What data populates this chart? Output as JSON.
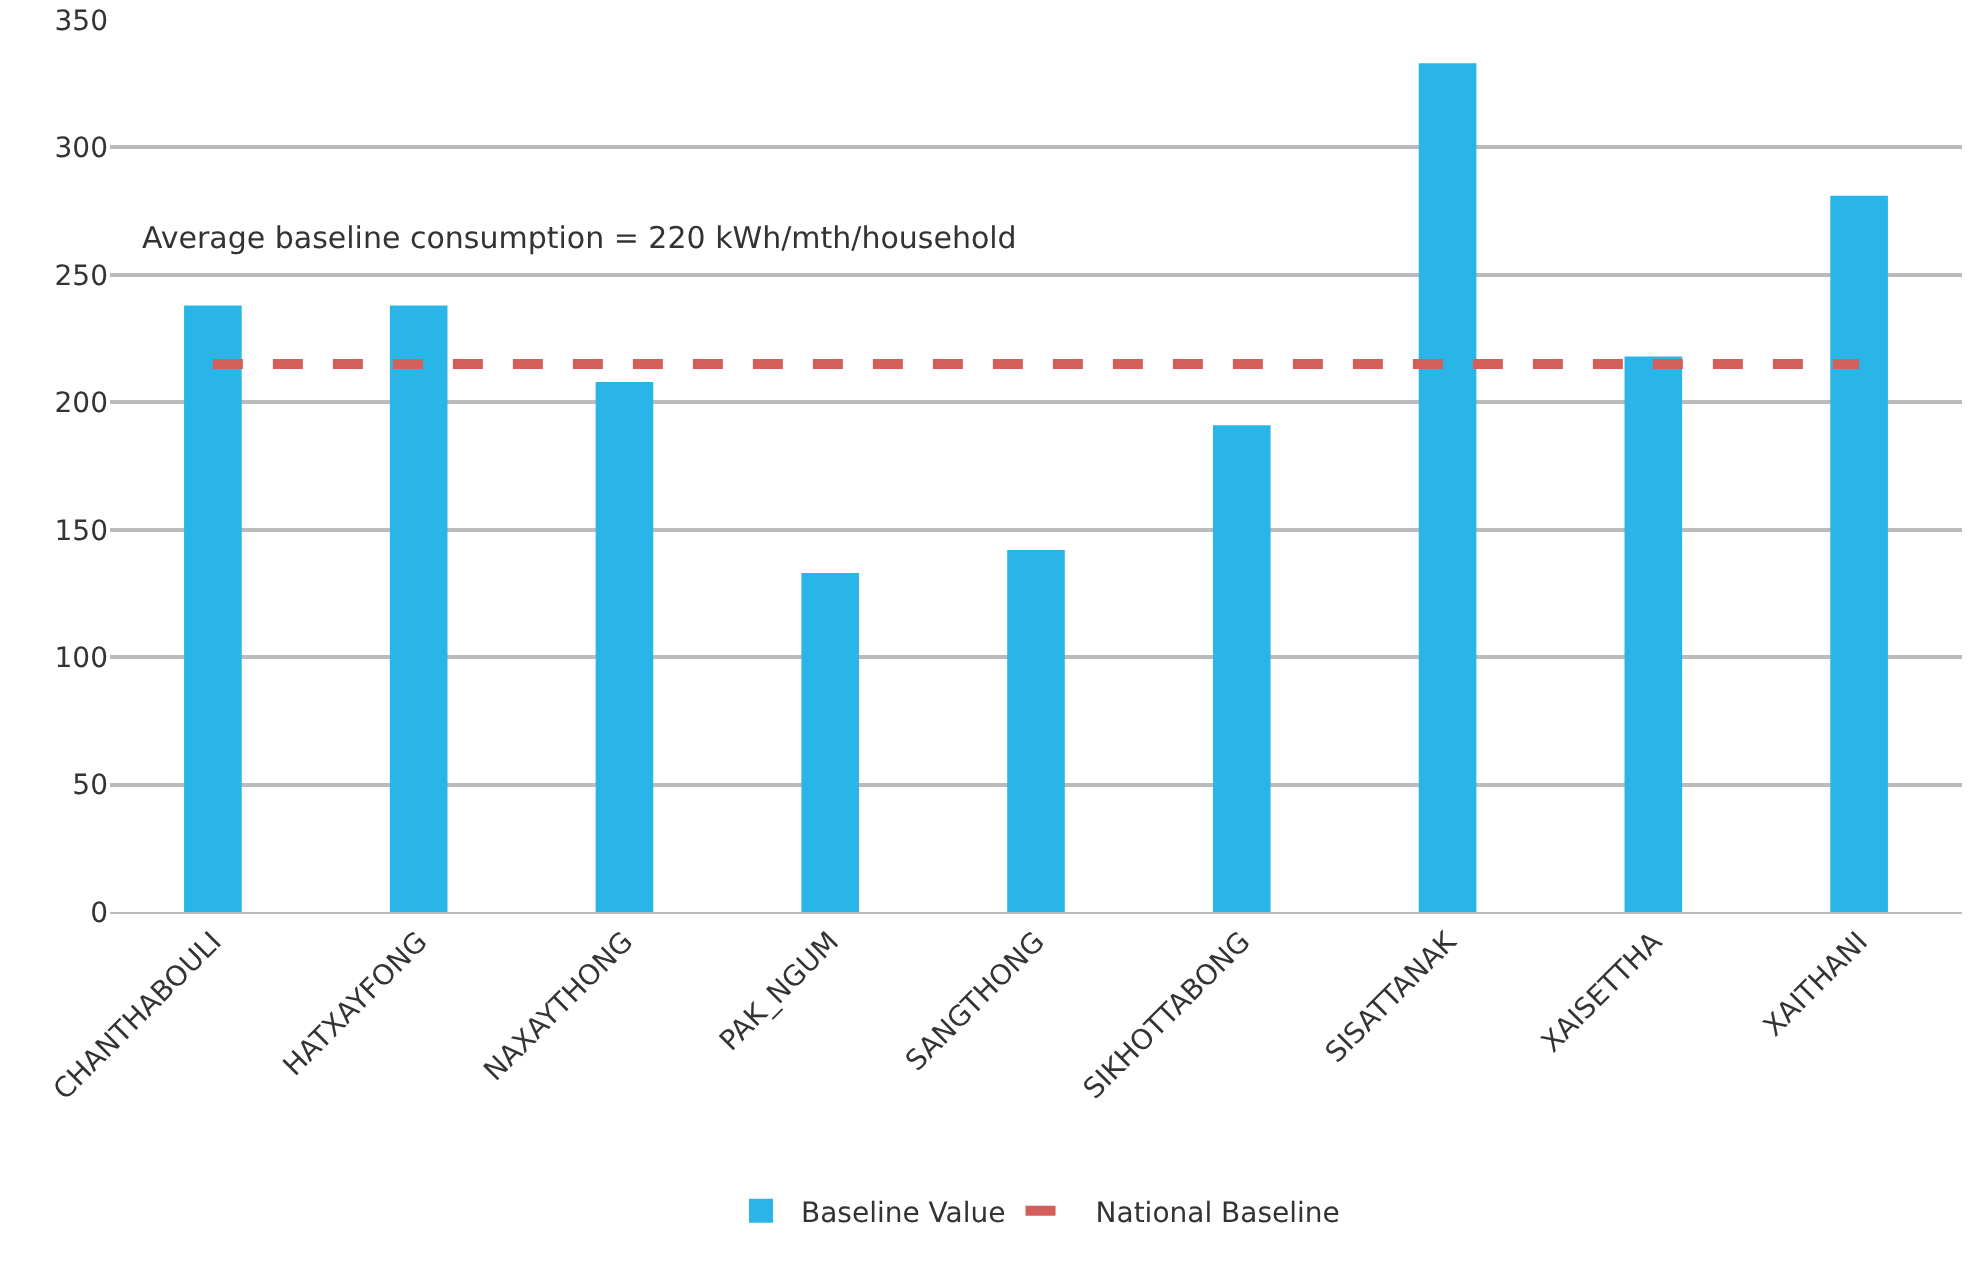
{
  "chart_data": {
    "type": "bar",
    "categories": [
      "CHANTHABOULI",
      "HATXAYFONG",
      "NAXAYTHONG",
      "PAK_NGUM",
      "SANGTHONG",
      "SIKHOTTABONG",
      "SISATTANAK",
      "XAISETTHA",
      "XAITHANI"
    ],
    "series": [
      {
        "name": "Baseline Value",
        "color": "#29b5e8",
        "values": [
          238,
          238,
          208,
          133,
          142,
          191,
          333,
          218,
          281
        ]
      },
      {
        "name": "National Baseline",
        "type": "line",
        "line_style": "dashed",
        "color": "#d45f5a",
        "values": [
          215,
          215,
          215,
          215,
          215,
          215,
          215,
          215,
          215
        ]
      }
    ],
    "annotations": [
      "Average baseline consumption = 220 kWh/mth/household"
    ],
    "ylim": [
      0,
      350
    ],
    "yticks": [
      0,
      50,
      100,
      150,
      200,
      250,
      300,
      350
    ],
    "grid": "y",
    "legend": "bottom",
    "marker": "none"
  }
}
